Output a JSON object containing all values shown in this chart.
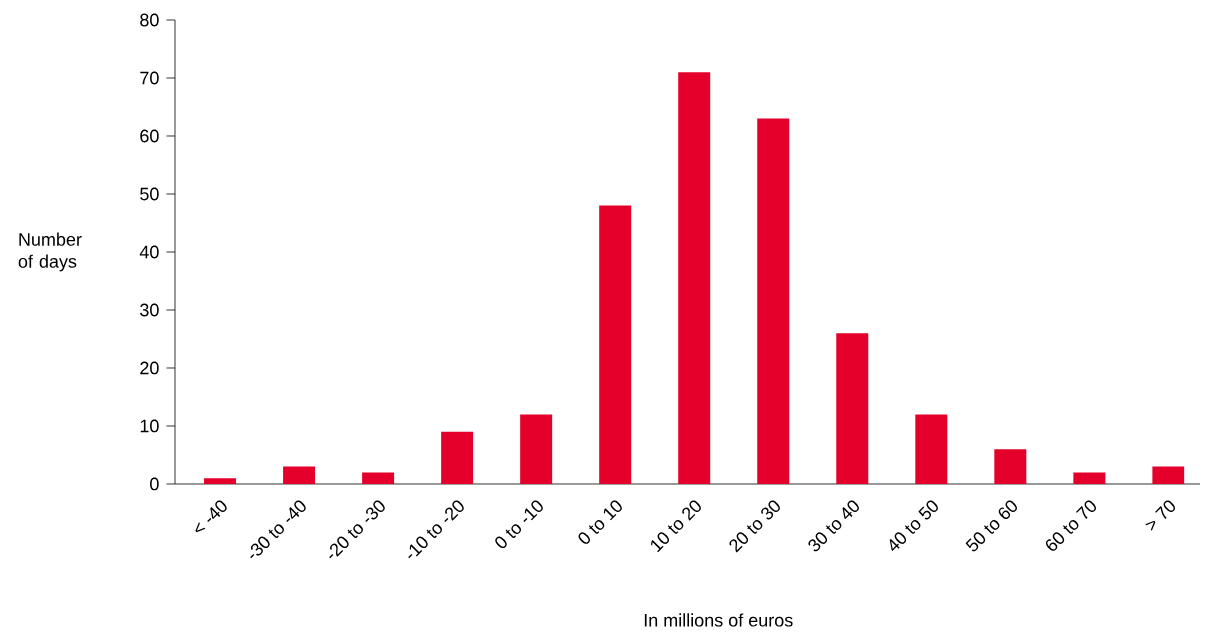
{
  "chart_data": {
    "type": "bar",
    "categories": [
      "< -40",
      "-30 to -40",
      "-20 to -30",
      "-10 to -20",
      "0 to -10",
      "0 to 10",
      "10 to 20",
      "20 to 30",
      "30 to 40",
      "40 to 50",
      "50 to 60",
      "60 to 70",
      "> 70"
    ],
    "values": [
      1,
      3,
      2,
      9,
      12,
      48,
      71,
      63,
      26,
      12,
      6,
      2,
      3
    ],
    "color": "#e4002b",
    "xlabel": "In millions of euros",
    "ylabel": "Number of days",
    "ylim": [
      0,
      80
    ],
    "yticks": [
      0,
      10,
      20,
      30,
      40,
      50,
      60,
      70,
      80
    ]
  }
}
